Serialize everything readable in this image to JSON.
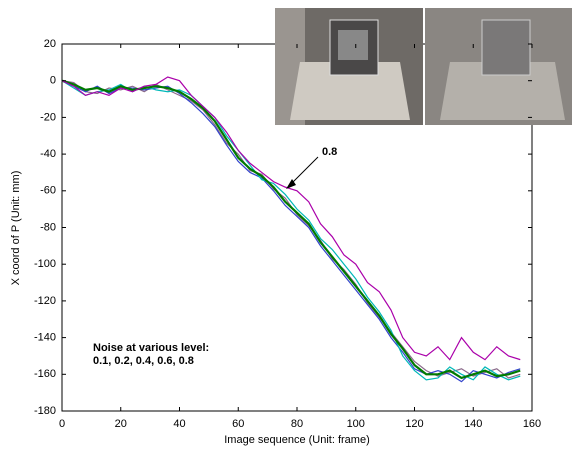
{
  "chart_data": {
    "type": "line",
    "xlabel": "Image sequence (Unit: frame)",
    "ylabel": "X coord of P (Unit: mm)",
    "x": [
      0,
      4,
      8,
      12,
      16,
      20,
      24,
      28,
      32,
      36,
      40,
      44,
      48,
      52,
      56,
      60,
      64,
      68,
      72,
      76,
      80,
      84,
      88,
      92,
      96,
      100,
      104,
      108,
      112,
      116,
      120,
      124,
      128,
      132,
      136,
      140,
      144,
      148,
      152,
      156
    ],
    "series": [
      {
        "color": "#8a6a8a",
        "values": [
          0,
          -1,
          -6,
          -7,
          -4,
          -5,
          -3,
          -6,
          -2,
          -5,
          -8,
          -11,
          -16,
          -24,
          -34,
          -40,
          -49,
          -51,
          -59,
          -64,
          -73,
          -79,
          -87,
          -97,
          -103,
          -111,
          -121,
          -129,
          -137,
          -145,
          -153,
          -158,
          -161,
          -159,
          -157,
          -161,
          -159,
          -157,
          -162,
          -160
        ]
      },
      {
        "color": "#3344cc",
        "values": [
          0,
          -3,
          -6,
          -3,
          -7,
          -4,
          -4,
          -5,
          -4,
          -3,
          -7,
          -12,
          -18,
          -25,
          -35,
          -44,
          -50,
          -53,
          -60,
          -68,
          -74,
          -80,
          -90,
          -98,
          -106,
          -114,
          -122,
          -130,
          -140,
          -148,
          -157,
          -160,
          -158,
          -160,
          -164,
          -158,
          -160,
          -162,
          -159,
          -157
        ]
      },
      {
        "color": "#00b8b8",
        "values": [
          0,
          -4,
          -8,
          -6,
          -5,
          -2,
          -6,
          -3,
          -5,
          -6,
          -5,
          -8,
          -14,
          -20,
          -30,
          -38,
          -46,
          -54,
          -56,
          -62,
          -70,
          -76,
          -86,
          -92,
          -100,
          -108,
          -118,
          -126,
          -136,
          -150,
          -158,
          -163,
          -162,
          -156,
          -160,
          -163,
          -156,
          -160,
          -163,
          -161
        ]
      },
      {
        "color": "#007a00",
        "values": [
          0,
          -2,
          -5,
          -4,
          -6,
          -3,
          -5,
          -4,
          -3,
          -4,
          -6,
          -10,
          -15,
          -22,
          -32,
          -42,
          -48,
          -52,
          -58,
          -66,
          -72,
          -78,
          -88,
          -96,
          -104,
          -112,
          -120,
          -128,
          -138,
          -146,
          -155,
          -160,
          -160,
          -158,
          -162,
          -160,
          -158,
          -161,
          -160,
          -158
        ]
      },
      {
        "color": "#aa00aa",
        "values": [
          0,
          -3,
          -8,
          -6,
          -8,
          -4,
          -6,
          -3,
          -2,
          2,
          0,
          -8,
          -14,
          -20,
          -28,
          -38,
          -45,
          -50,
          -55,
          -58,
          -60,
          -66,
          -78,
          -85,
          -95,
          -100,
          -110,
          -115,
          -125,
          -140,
          -148,
          -150,
          -145,
          -152,
          -140,
          -148,
          -152,
          -145,
          -150,
          -152
        ]
      }
    ],
    "xlim": [
      0,
      160
    ],
    "xticks": [
      0,
      20,
      40,
      60,
      80,
      100,
      120,
      140,
      160
    ],
    "ylim": [
      -180,
      20
    ],
    "yticks": [
      -180,
      -160,
      -140,
      -120,
      -100,
      -80,
      -60,
      -40,
      -20,
      0,
      20
    ],
    "annotations": [
      "0.8",
      "Noise at various level:",
      "0.1, 0.2, 0.4, 0.6, 0.8"
    ]
  }
}
